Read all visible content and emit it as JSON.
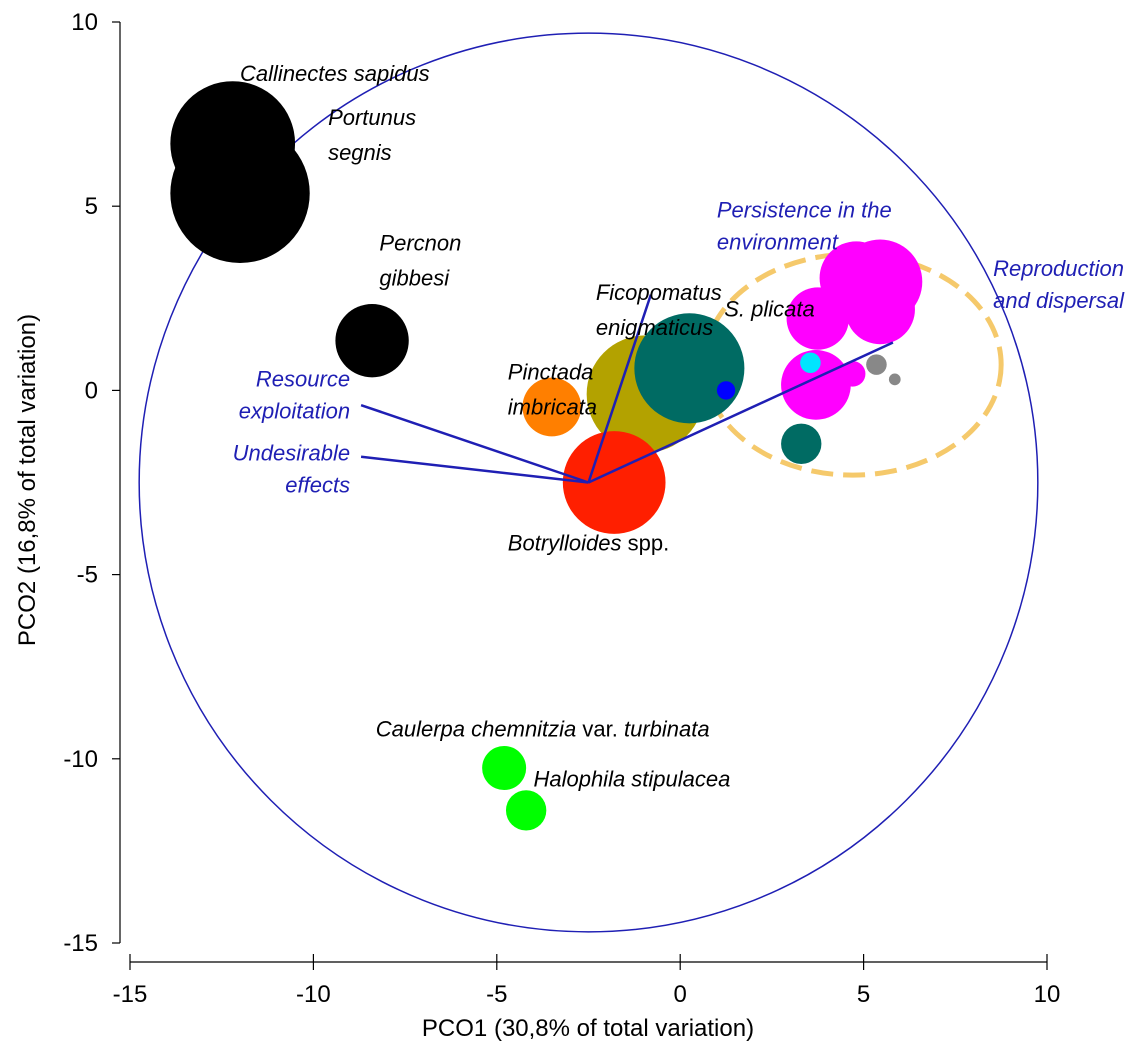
{
  "chart_data": {
    "type": "scatter",
    "subtype": "bubble biplot (PCO ordination)",
    "xlabel": "PCO1 (30,8% of total variation)",
    "ylabel": "PCO2 (16,8% of total variation)",
    "xlim": [
      -15,
      10
    ],
    "ylim": [
      -15,
      10
    ],
    "x_ticks": [
      -15,
      -10,
      -5,
      0,
      5,
      10
    ],
    "y_ticks": [
      10,
      5,
      0,
      -5,
      -10,
      -15
    ],
    "x_tick_labels": [
      "-15",
      "-10",
      "-5",
      "0",
      "5",
      "10"
    ],
    "y_tick_labels": [
      "10",
      "5",
      "0",
      "-5",
      "-10",
      "-15"
    ],
    "grid": false,
    "legend": "none",
    "points": [
      {
        "x": -12.2,
        "y": 6.7,
        "size": 1.7,
        "color": "#000000"
      },
      {
        "x": -12.0,
        "y": 5.35,
        "size": 1.9,
        "color": "#000000"
      },
      {
        "x": -8.4,
        "y": 1.35,
        "size": 1.0,
        "color": "#000000"
      },
      {
        "x": -3.5,
        "y": -0.45,
        "size": 0.8,
        "color": "#ff7f00"
      },
      {
        "x": -0.95,
        "y": -0.1,
        "size": 1.6,
        "color": "#b3a200"
      },
      {
        "x": 0.25,
        "y": 0.6,
        "size": 1.5,
        "color": "#006b63"
      },
      {
        "x": -1.8,
        "y": -2.5,
        "size": 1.4,
        "color": "#ff1f00"
      },
      {
        "x": 1.25,
        "y": 0.0,
        "size": 0.25,
        "color": "#0000ff"
      },
      {
        "x": 3.3,
        "y": -1.45,
        "size": 0.55,
        "color": "#006b63"
      },
      {
        "x": 3.7,
        "y": 0.15,
        "size": 0.95,
        "color": "#ff00ff"
      },
      {
        "x": 4.7,
        "y": 0.45,
        "size": 0.35,
        "color": "#ff00ff"
      },
      {
        "x": 3.75,
        "y": 1.95,
        "size": 0.85,
        "color": "#ff00ff"
      },
      {
        "x": 4.8,
        "y": 3.05,
        "size": 1.0,
        "color": "#ff00ff"
      },
      {
        "x": 5.45,
        "y": 2.95,
        "size": 1.15,
        "color": "#ff00ff"
      },
      {
        "x": 5.45,
        "y": 2.2,
        "size": 0.95,
        "color": "#ff00ff"
      },
      {
        "x": 3.55,
        "y": 0.75,
        "size": 0.28,
        "color": "#00e5ff"
      },
      {
        "x": 5.35,
        "y": 0.7,
        "size": 0.28,
        "color": "#888888"
      },
      {
        "x": 5.85,
        "y": 0.3,
        "size": 0.16,
        "color": "#888888"
      },
      {
        "x": -4.8,
        "y": -10.25,
        "size": 0.6,
        "color": "#00ff00"
      },
      {
        "x": -4.2,
        "y": -11.4,
        "size": 0.55,
        "color": "#00ff00"
      }
    ],
    "species_labels": [
      {
        "text": "Callinectes sapidus",
        "italic": true,
        "x": -12.0,
        "y": 8.4
      },
      {
        "text": "Portunus",
        "italic": true,
        "x": -9.6,
        "y": 7.2
      },
      {
        "text": "segnis",
        "italic": true,
        "x": -9.6,
        "y": 6.25
      },
      {
        "text": "Percnon",
        "italic": true,
        "x": -8.2,
        "y": 3.8
      },
      {
        "text": "gibbesi",
        "italic": true,
        "x": -8.2,
        "y": 2.85
      },
      {
        "text": "Ficopomatus",
        "italic": true,
        "x": -2.3,
        "y": 2.45
      },
      {
        "text": "enigmaticus",
        "italic": true,
        "x": -2.3,
        "y": 1.5
      },
      {
        "text": "S. plicata",
        "italic": true,
        "x": 1.2,
        "y": 2.0
      },
      {
        "text": "Pinctada",
        "italic": true,
        "x": -4.7,
        "y": 0.3
      },
      {
        "text": "imbricata",
        "italic": true,
        "x": -4.7,
        "y": -0.65
      },
      {
        "text": "Botrylloides",
        "italic": true,
        "x": -4.7,
        "y": -4.35,
        "suffix": " spp."
      },
      {
        "text": "Caulerpa chemnitzia",
        "italic": true,
        "x": -8.3,
        "y": -9.4,
        "suffix": " var. ",
        "suffix2": "turbinata"
      },
      {
        "text": "Halophila stipulacea",
        "italic": true,
        "x": -4.0,
        "y": -10.75
      }
    ],
    "vectors": {
      "origin": [
        -2.5,
        -2.5
      ],
      "items": [
        {
          "label_lines": [
            "Persistence in the",
            "environment"
          ],
          "end": [
            -0.8,
            2.6
          ],
          "label_pos": [
            1.0,
            4.7
          ]
        },
        {
          "label_lines": [
            "Reproduction",
            "and dispersal"
          ],
          "end": [
            5.8,
            1.3
          ],
          "label_pos": [
            12.1,
            3.1
          ]
        },
        {
          "label_lines": [
            "Resource",
            "exploitation"
          ],
          "end": [
            -8.7,
            -0.4
          ],
          "label_pos": [
            -9.0,
            0.1
          ]
        },
        {
          "label_lines": [
            "Undesirable",
            "effects"
          ],
          "end": [
            -8.7,
            -1.8
          ],
          "label_pos": [
            -9.0,
            -1.9
          ]
        }
      ],
      "circle_radius": 12.25,
      "vector_color": "#1f1fb4"
    },
    "highlight_group": {
      "center": [
        4.7,
        0.7
      ],
      "radius_x": 4.05,
      "radius_y": 3.0,
      "color": "#f5c96b",
      "style": "dashed"
    }
  }
}
